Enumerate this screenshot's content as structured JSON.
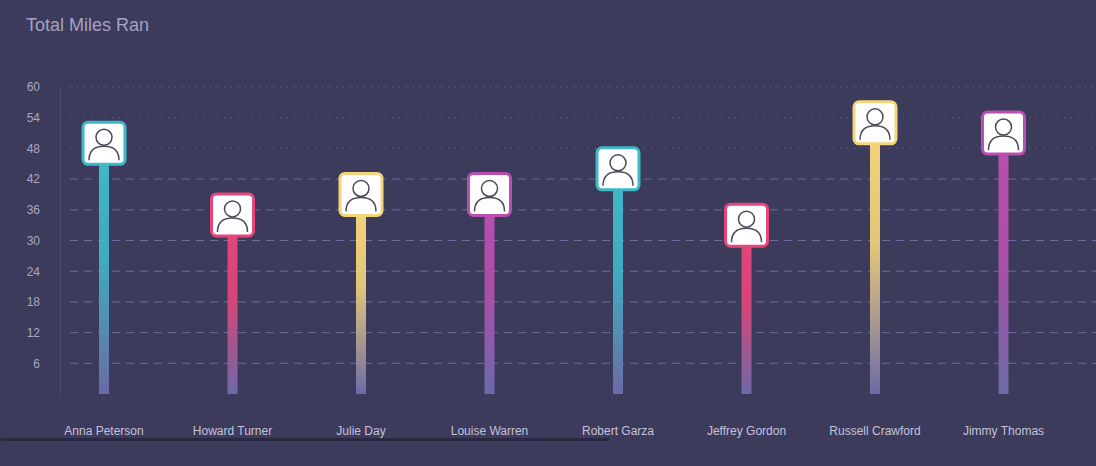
{
  "chart_data": {
    "type": "bar",
    "title": "Total Miles Ran",
    "categories": [
      "Anna Peterson",
      "Howard Turner",
      "Julie Day",
      "Louise Warren",
      "Robert Garza",
      "Jeffrey Gordon",
      "Russell Crawford",
      "Jimmy Thomas"
    ],
    "values": [
      49,
      35,
      39,
      39,
      44,
      33,
      53,
      51
    ],
    "colors": [
      "#3fb8c8",
      "#e8457a",
      "#f5d57a",
      "#b94fb0",
      "#3fb8c8",
      "#e8457a",
      "#f5d57a",
      "#b94fb0"
    ],
    "ylim": [
      0,
      60
    ],
    "yticks": [
      6,
      12,
      18,
      24,
      30,
      36,
      42,
      48,
      54,
      60
    ],
    "grid": true
  }
}
